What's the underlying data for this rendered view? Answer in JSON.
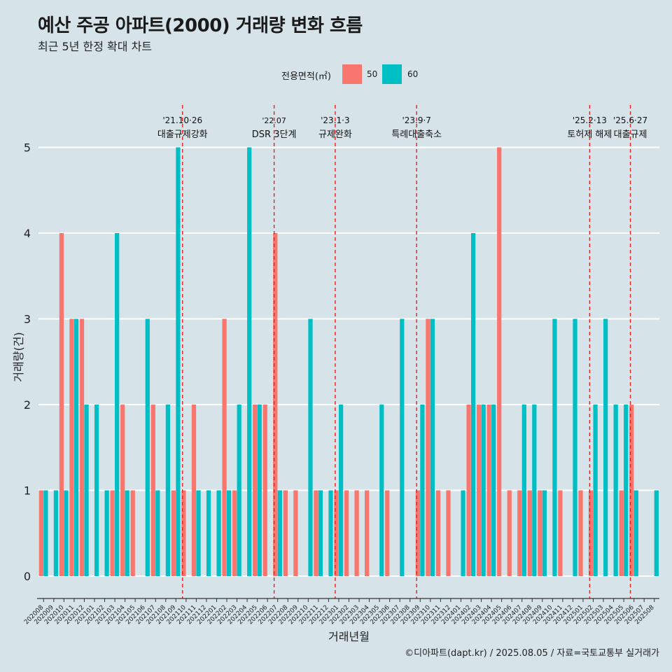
{
  "header": {
    "title": "예산 주공 아파트(2000) 거래량 변화 흐름",
    "subtitle": "최근 5년 한정 확대 차트"
  },
  "legend": {
    "title": "전용면적(㎡)",
    "items": [
      {
        "label": "50",
        "color": "#f8766d"
      },
      {
        "label": "60",
        "color": "#00bfc4"
      }
    ]
  },
  "footer": "©디아파트(dapt.kr) / 2025.08.05 / 자료=국토교통부 실거래가",
  "chart_data": {
    "type": "bar",
    "title": "예산 주공 아파트(2000) 거래량 변화 흐름",
    "xlabel": "거래년월",
    "ylabel": "거래량(건)",
    "ylim": [
      0,
      5
    ],
    "yticks": [
      0,
      1,
      2,
      3,
      4,
      5
    ],
    "categories": [
      "202008",
      "202009",
      "202010",
      "202011",
      "202012",
      "202101",
      "202102",
      "202103",
      "202104",
      "202105",
      "202106",
      "202107",
      "202108",
      "202109",
      "202110",
      "202111",
      "202112",
      "202201",
      "202202",
      "202203",
      "202204",
      "202205",
      "202206",
      "202207",
      "202208",
      "202209",
      "202210",
      "202211",
      "202212",
      "202301",
      "202302",
      "202303",
      "202304",
      "202305",
      "202306",
      "202307",
      "202308",
      "202309",
      "202310",
      "202311",
      "202312",
      "202401",
      "202402",
      "202403",
      "202404",
      "202405",
      "202406",
      "202407",
      "202408",
      "202409",
      "202410",
      "202411",
      "202412",
      "202501",
      "202502",
      "202503",
      "202504",
      "202505",
      "202506",
      "202507",
      "202508"
    ],
    "series": [
      {
        "name": "50",
        "color": "#f8766d",
        "values": [
          1,
          0,
          4,
          3,
          3,
          0,
          0,
          1,
          2,
          1,
          0,
          2,
          0,
          1,
          1,
          2,
          0,
          0,
          3,
          1,
          0,
          2,
          2,
          4,
          1,
          1,
          0,
          1,
          0,
          1,
          1,
          1,
          1,
          0,
          1,
          0,
          0,
          1,
          3,
          1,
          1,
          0,
          2,
          2,
          2,
          5,
          1,
          1,
          1,
          1,
          0,
          1,
          0,
          1,
          1,
          0,
          0,
          1,
          2,
          0,
          0
        ]
      },
      {
        "name": "60",
        "color": "#00bfc4",
        "values": [
          1,
          1,
          1,
          3,
          2,
          2,
          1,
          4,
          1,
          0,
          3,
          1,
          2,
          5,
          0,
          1,
          1,
          1,
          1,
          2,
          5,
          2,
          0,
          1,
          0,
          0,
          3,
          1,
          1,
          2,
          0,
          0,
          0,
          2,
          0,
          3,
          0,
          2,
          3,
          0,
          0,
          1,
          4,
          2,
          2,
          0,
          0,
          2,
          2,
          1,
          3,
          0,
          3,
          0,
          2,
          3,
          2,
          2,
          1,
          0,
          1
        ]
      }
    ],
    "events": [
      {
        "date": "'21.10·26",
        "label": "대출규제강화",
        "after": "202110"
      },
      {
        "date": "'22.07",
        "label": "DSR 3단계",
        "after": "202207"
      },
      {
        "date": "'23.1·3",
        "label": "규제완화",
        "after": "202301"
      },
      {
        "date": "'23.9·7",
        "label": "특례대출축소",
        "after": "202309"
      },
      {
        "date": "'25.2·13",
        "label": "토허제 해제",
        "after": "202502"
      },
      {
        "date": "'25.6·27",
        "label": "대출규제",
        "after": "202506"
      }
    ]
  }
}
